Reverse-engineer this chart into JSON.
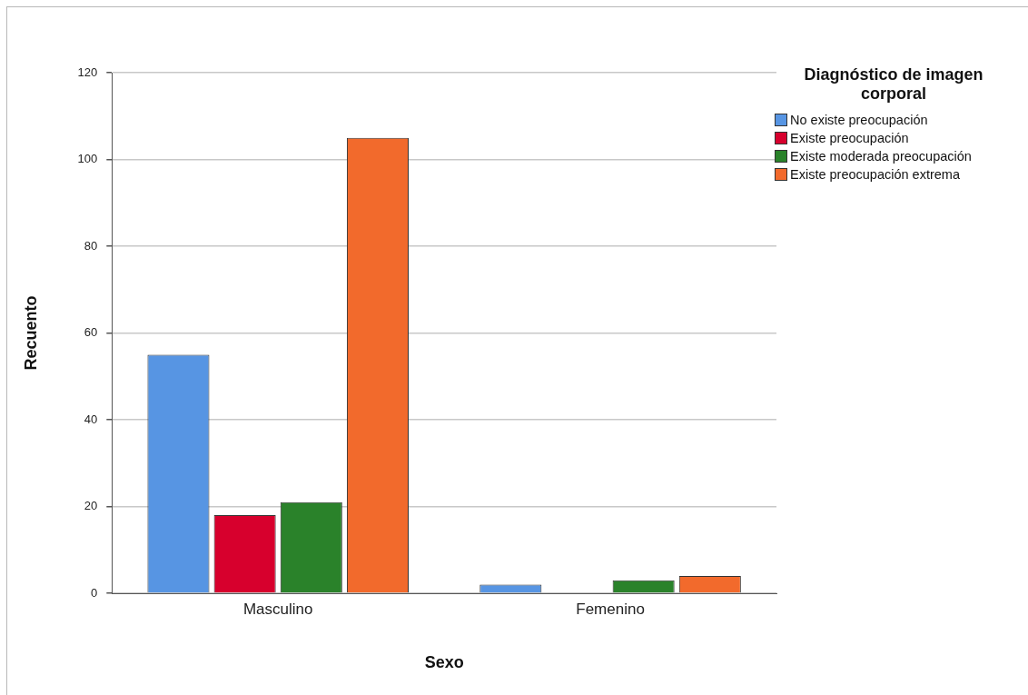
{
  "chart_data": {
    "type": "bar",
    "xlabel": "Sexo",
    "ylabel": "Recuento",
    "legend_title": "Diagnóstico de imagen corporal",
    "categories": [
      "Masculino",
      "Femenino"
    ],
    "series": [
      {
        "name": "No existe preocupación",
        "color": "#5795e3",
        "values": [
          55,
          2
        ]
      },
      {
        "name": "Existe preocupación",
        "color": "#d7002d",
        "values": [
          18,
          0
        ]
      },
      {
        "name": "Existe moderada preocupación",
        "color": "#2a822a",
        "values": [
          21,
          3
        ]
      },
      {
        "name": "Existe preocupación extrema",
        "color": "#f26a2c",
        "values": [
          105,
          4
        ]
      }
    ],
    "ylim": [
      0,
      120
    ],
    "yticks": [
      0,
      20,
      40,
      60,
      80,
      100,
      120
    ],
    "grid": "y",
    "legend": "top right"
  }
}
